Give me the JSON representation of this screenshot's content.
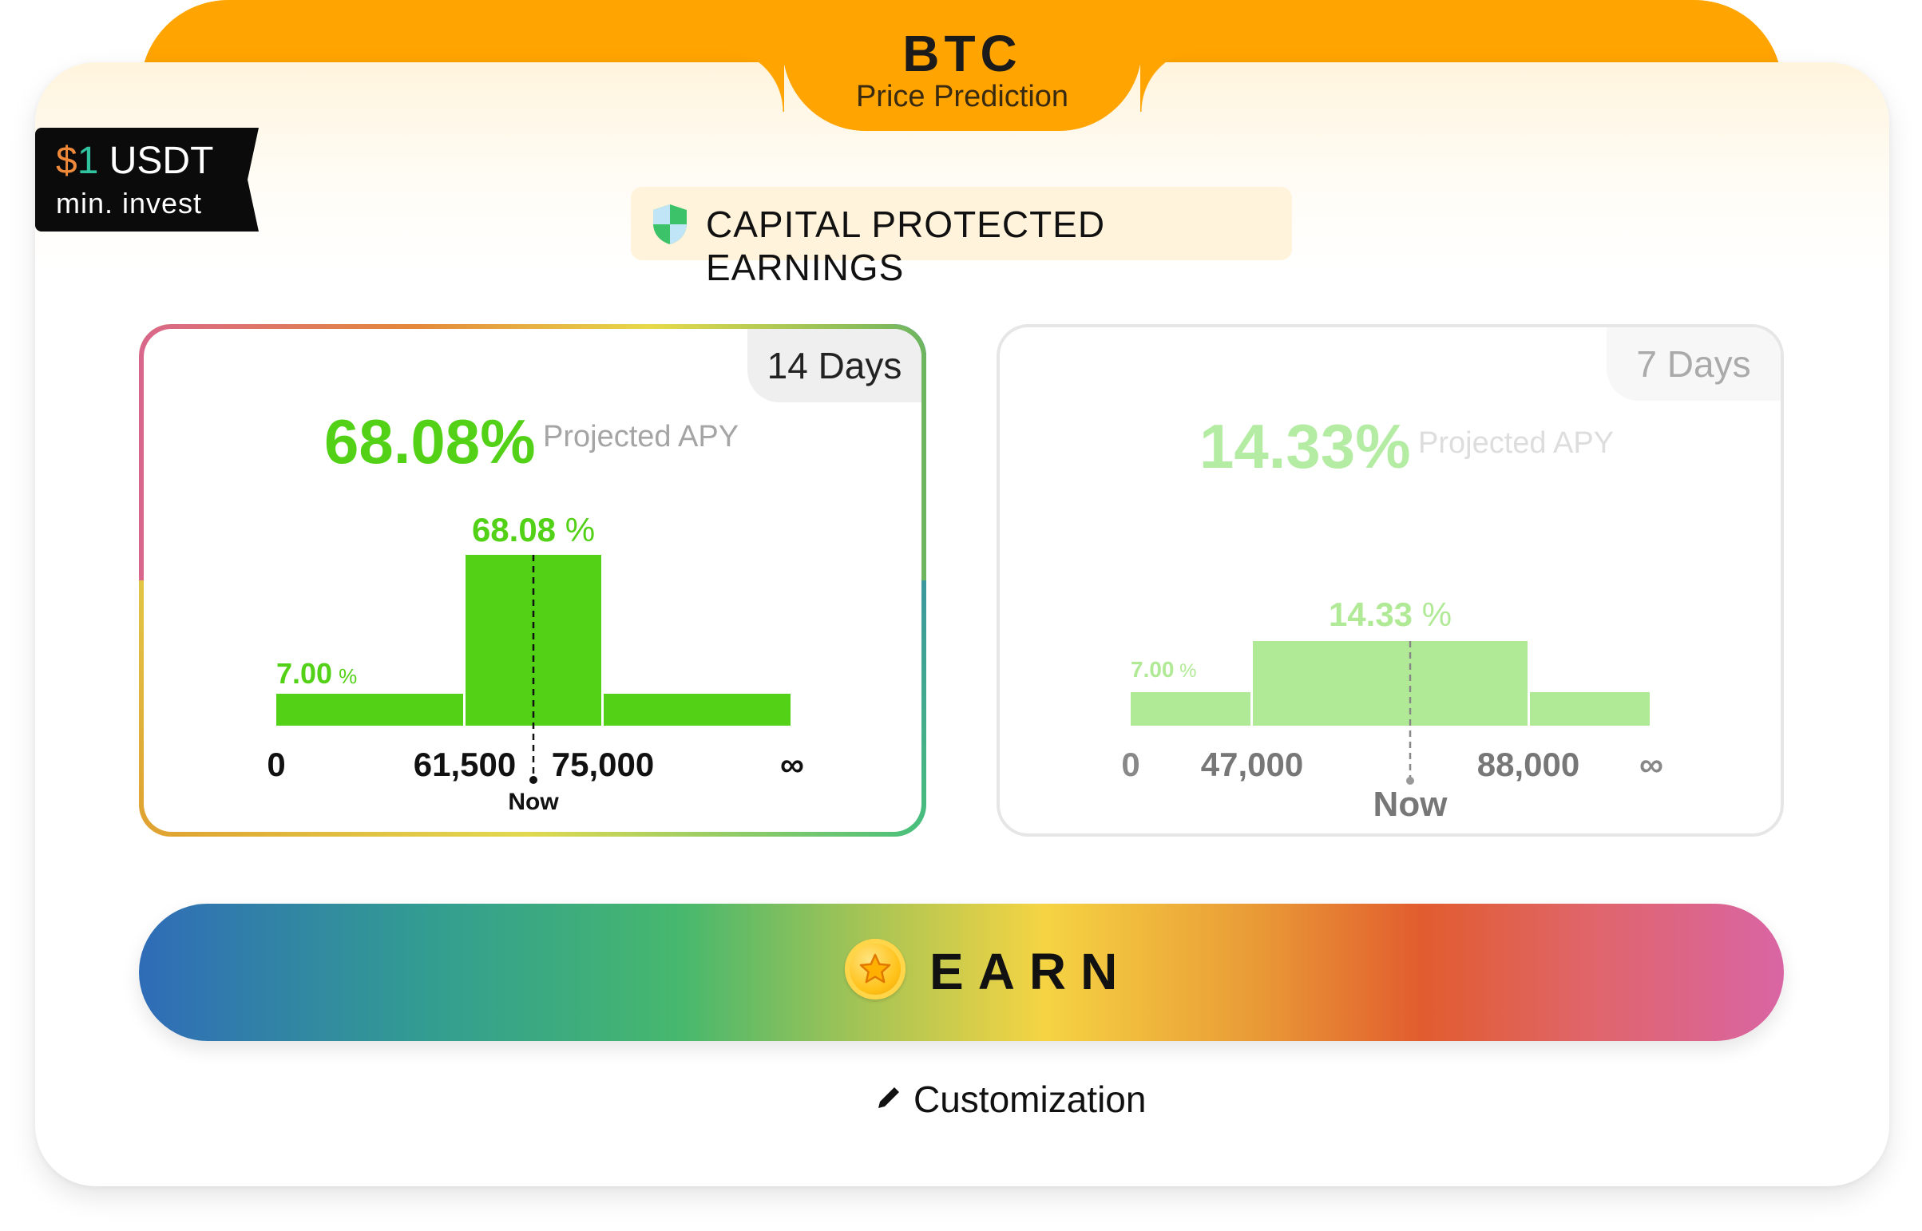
{
  "header": {
    "asset": "BTC",
    "subtitle": "Price Prediction",
    "banner_color": "#FFA400"
  },
  "min_invest": {
    "currency_symbol": "$",
    "amount": "1",
    "unit": "USDT",
    "label": "min. invest"
  },
  "protection_badge": {
    "icon": "shield-icon",
    "label": "CAPITAL PROTECTED EARNINGS"
  },
  "options": [
    {
      "selected": true,
      "duration": "14 Days",
      "apy": "68.08%",
      "apy_label": "Projected APY",
      "chart_data": {
        "type": "bar",
        "bins": [
          {
            "from": "0",
            "to": "61,500",
            "apy": 7.0,
            "label": "7.00",
            "unit": "%"
          },
          {
            "from": "61,500",
            "to": "75,000",
            "apy": 68.08,
            "label": "68.08",
            "unit": " %"
          },
          {
            "from": "75,000",
            "to": "∞",
            "apy": 7.0,
            "label": "",
            "unit": ""
          }
        ],
        "ticks": [
          "0",
          "61,500",
          "75,000",
          "∞"
        ],
        "now_label": "Now",
        "color": "#52D116"
      }
    },
    {
      "selected": false,
      "duration": "7 Days",
      "apy": "14.33%",
      "apy_label": "Projected APY",
      "chart_data": {
        "type": "bar",
        "bins": [
          {
            "from": "0",
            "to": "47,000",
            "apy": 7.0,
            "label": "7.00",
            "unit": " %"
          },
          {
            "from": "47,000",
            "to": "88,000",
            "apy": 14.33,
            "label": "14.33",
            "unit": " %"
          },
          {
            "from": "88,000",
            "to": "∞",
            "apy": 7.0,
            "label": "",
            "unit": ""
          }
        ],
        "ticks": [
          "0",
          "47,000",
          "88,000",
          "∞"
        ],
        "now_label": "Now",
        "color": "#B1EA96"
      }
    }
  ],
  "earn_button": {
    "icon": "star-coin-icon",
    "label": "EARN"
  },
  "customization": {
    "icon": "pencil-icon",
    "label": "Customization"
  }
}
